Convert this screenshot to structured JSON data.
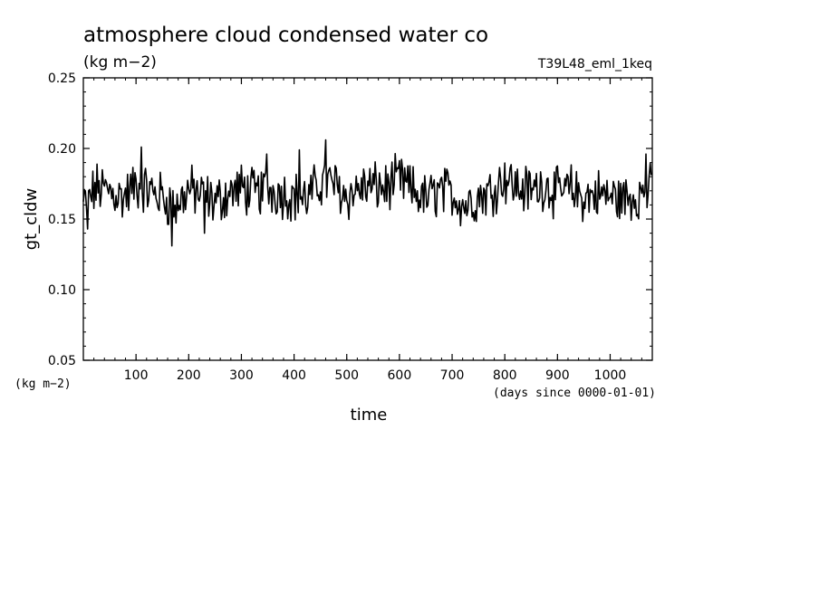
{
  "chart_data": {
    "type": "line",
    "title": "atmosphere cloud condensed water co",
    "title_units": "(kg m−2)",
    "run_id": "T39L48_eml_1keq",
    "xlabel": "time",
    "x_units": "(days since 0000-01-01)",
    "ylabel": "gt_cldw",
    "y_units": "(kg m−2)",
    "xlim": [
      0,
      1080
    ],
    "ylim": [
      0.05,
      0.25
    ],
    "x_ticks": [
      100,
      200,
      300,
      400,
      500,
      600,
      700,
      800,
      900,
      1000
    ],
    "y_ticks": [
      "0.05",
      "0.10",
      "0.15",
      "0.20",
      "0.25"
    ],
    "grid": false,
    "line_color": "#000000",
    "series": [
      {
        "x": [
          0,
          25,
          50,
          75,
          100,
          125,
          150,
          175,
          200,
          225,
          250,
          275,
          300,
          325,
          350,
          375,
          400,
          425,
          450,
          475,
          500,
          525,
          550,
          575,
          600,
          625,
          650,
          675,
          700,
          725,
          750,
          775,
          800,
          825,
          850,
          875,
          900,
          925,
          950,
          975,
          1000,
          1025,
          1050,
          1075
        ],
        "values": [
          0.16,
          0.172,
          0.17,
          0.165,
          0.174,
          0.17,
          0.166,
          0.158,
          0.171,
          0.167,
          0.162,
          0.168,
          0.172,
          0.168,
          0.171,
          0.169,
          0.166,
          0.164,
          0.176,
          0.175,
          0.166,
          0.172,
          0.173,
          0.172,
          0.178,
          0.17,
          0.164,
          0.17,
          0.168,
          0.16,
          0.166,
          0.17,
          0.18,
          0.172,
          0.17,
          0.175,
          0.168,
          0.171,
          0.165,
          0.168,
          0.166,
          0.164,
          0.167,
          0.17
        ],
        "minima": [
          0.143,
          0.131,
          0.14,
          0.14,
          0.125,
          0.14,
          0.141
        ]
      }
    ]
  }
}
